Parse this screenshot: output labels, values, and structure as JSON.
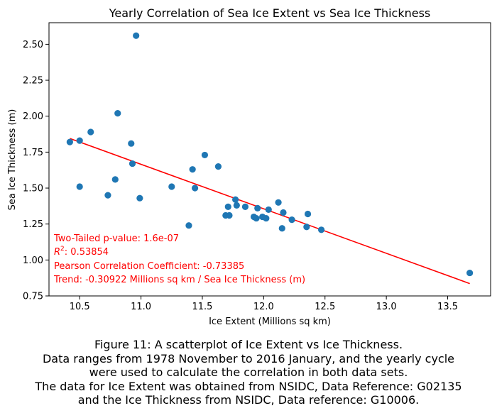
{
  "chart_data": {
    "type": "scatter",
    "title": "Yearly Correlation of Sea Ice Extent vs Sea Ice Thickness",
    "xlabel": "Ice Extent (Millions sq km)",
    "ylabel": "Sea Ice Thickness (m)",
    "xlim": [
      10.25,
      13.85
    ],
    "ylim": [
      0.75,
      2.65
    ],
    "xticks": [
      "10.5",
      "11.0",
      "11.5",
      "12.0",
      "12.5",
      "13.0",
      "13.5"
    ],
    "yticks": [
      "0.75",
      "1.00",
      "1.25",
      "1.50",
      "1.75",
      "2.00",
      "2.25",
      "2.50"
    ],
    "grid": false,
    "point_color": "#1f77b4",
    "trend_color": "#ff0000",
    "points": [
      {
        "x": 10.42,
        "y": 1.82
      },
      {
        "x": 10.5,
        "y": 1.83
      },
      {
        "x": 10.5,
        "y": 1.51
      },
      {
        "x": 10.59,
        "y": 1.89
      },
      {
        "x": 10.73,
        "y": 1.45
      },
      {
        "x": 10.79,
        "y": 1.56
      },
      {
        "x": 10.81,
        "y": 2.02
      },
      {
        "x": 10.92,
        "y": 1.81
      },
      {
        "x": 10.93,
        "y": 1.67
      },
      {
        "x": 10.96,
        "y": 2.56
      },
      {
        "x": 10.99,
        "y": 1.43
      },
      {
        "x": 11.25,
        "y": 1.51
      },
      {
        "x": 11.39,
        "y": 1.24
      },
      {
        "x": 11.42,
        "y": 1.63
      },
      {
        "x": 11.44,
        "y": 1.5
      },
      {
        "x": 11.52,
        "y": 1.73
      },
      {
        "x": 11.63,
        "y": 1.65
      },
      {
        "x": 11.69,
        "y": 1.31
      },
      {
        "x": 11.71,
        "y": 1.37
      },
      {
        "x": 11.72,
        "y": 1.31
      },
      {
        "x": 11.77,
        "y": 1.42
      },
      {
        "x": 11.78,
        "y": 1.38
      },
      {
        "x": 11.85,
        "y": 1.37
      },
      {
        "x": 11.92,
        "y": 1.3
      },
      {
        "x": 11.94,
        "y": 1.29
      },
      {
        "x": 11.95,
        "y": 1.36
      },
      {
        "x": 11.99,
        "y": 1.3
      },
      {
        "x": 12.02,
        "y": 1.29
      },
      {
        "x": 12.04,
        "y": 1.35
      },
      {
        "x": 12.12,
        "y": 1.4
      },
      {
        "x": 12.15,
        "y": 1.22
      },
      {
        "x": 12.16,
        "y": 1.33
      },
      {
        "x": 12.23,
        "y": 1.28
      },
      {
        "x": 12.35,
        "y": 1.23
      },
      {
        "x": 12.36,
        "y": 1.32
      },
      {
        "x": 12.47,
        "y": 1.21
      },
      {
        "x": 13.68,
        "y": 0.91
      }
    ],
    "trend_line": [
      {
        "x": 10.42,
        "y": 1.845
      },
      {
        "x": 13.68,
        "y": 0.836
      }
    ],
    "annotations": [
      "Two-Tailed p-value: 1.6e-07",
      ": 0.53854",
      "Pearson Correlation Coefficient: -0.73385",
      "Trend: -0.30922 Millions sq km / Sea Ice Thickness (m)"
    ],
    "r2_symbol": "R",
    "r2_exponent": "2"
  },
  "caption": {
    "lines": [
      "Figure 11: A scatterplot of Ice Extent vs Ice Thickness.",
      "Data ranges from 1978 November to 2016 January, and the yearly cycle",
      "were used to calculate the correlation in both data sets.",
      "The data for Ice Extent was obtained from NSIDC, Data Reference: G02135",
      "and the Ice Thickness from NSIDC, Data reference: G10006."
    ]
  }
}
